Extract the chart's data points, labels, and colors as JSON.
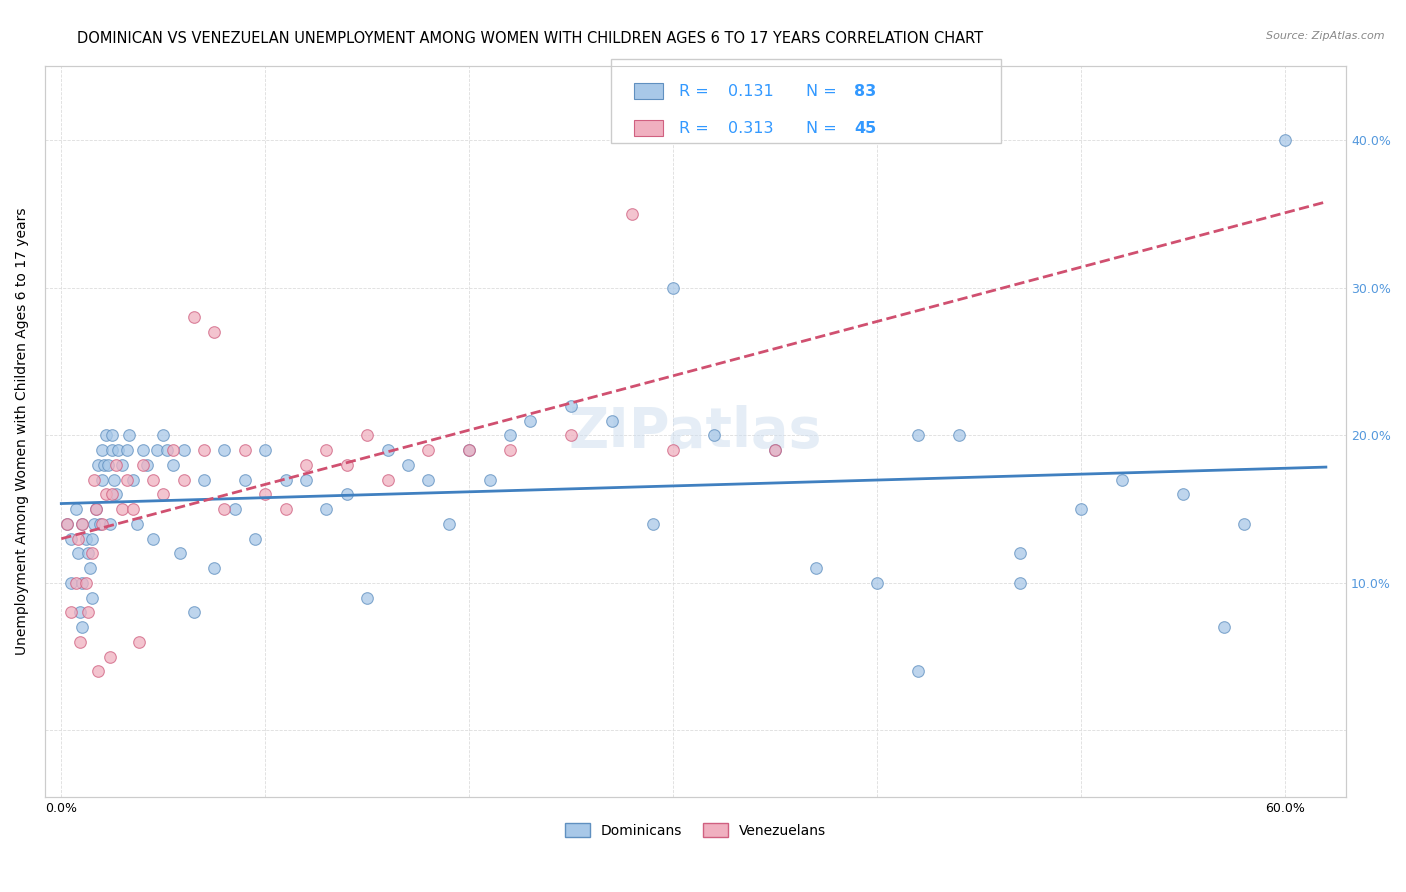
{
  "title": "DOMINICAN VS VENEZUELAN UNEMPLOYMENT AMONG WOMEN WITH CHILDREN AGES 6 TO 17 YEARS CORRELATION CHART",
  "source": "Source: ZipAtlas.com",
  "ylabel": "Unemployment Among Women with Children Ages 6 to 17 years",
  "xlim": [
    -0.008,
    0.63
  ],
  "ylim": [
    -0.045,
    0.45
  ],
  "dominican_color": "#A8C8E8",
  "venezuelan_color": "#F0B0C0",
  "dominican_edge": "#6090C0",
  "venezuelan_edge": "#D06080",
  "trendline_dominican_color": "#4080C0",
  "trendline_venezuelan_color": "#D05070",
  "R_dominican": 0.131,
  "N_dominican": 83,
  "R_venezuelan": 0.313,
  "N_venezuelan": 45,
  "legend_dominican": "Dominicans",
  "legend_venezuelan": "Venezuelans",
  "dominican_x": [
    0.003,
    0.005,
    0.005,
    0.007,
    0.008,
    0.009,
    0.01,
    0.01,
    0.01,
    0.012,
    0.013,
    0.014,
    0.015,
    0.015,
    0.016,
    0.017,
    0.018,
    0.019,
    0.02,
    0.02,
    0.021,
    0.022,
    0.023,
    0.024,
    0.025,
    0.025,
    0.026,
    0.027,
    0.028,
    0.03,
    0.032,
    0.033,
    0.035,
    0.037,
    0.04,
    0.042,
    0.045,
    0.047,
    0.05,
    0.052,
    0.055,
    0.058,
    0.06,
    0.065,
    0.07,
    0.075,
    0.08,
    0.085,
    0.09,
    0.095,
    0.1,
    0.11,
    0.12,
    0.13,
    0.14,
    0.15,
    0.16,
    0.17,
    0.18,
    0.19,
    0.2,
    0.21,
    0.22,
    0.23,
    0.25,
    0.27,
    0.29,
    0.3,
    0.32,
    0.35,
    0.37,
    0.4,
    0.42,
    0.44,
    0.47,
    0.5,
    0.52,
    0.55,
    0.57,
    0.58,
    0.42,
    0.47,
    0.6
  ],
  "dominican_y": [
    0.14,
    0.13,
    0.1,
    0.15,
    0.12,
    0.08,
    0.14,
    0.1,
    0.07,
    0.13,
    0.12,
    0.11,
    0.13,
    0.09,
    0.14,
    0.15,
    0.18,
    0.14,
    0.19,
    0.17,
    0.18,
    0.2,
    0.18,
    0.14,
    0.2,
    0.19,
    0.17,
    0.16,
    0.19,
    0.18,
    0.19,
    0.2,
    0.17,
    0.14,
    0.19,
    0.18,
    0.13,
    0.19,
    0.2,
    0.19,
    0.18,
    0.12,
    0.19,
    0.08,
    0.17,
    0.11,
    0.19,
    0.15,
    0.17,
    0.13,
    0.19,
    0.17,
    0.17,
    0.15,
    0.16,
    0.09,
    0.19,
    0.18,
    0.17,
    0.14,
    0.19,
    0.17,
    0.2,
    0.21,
    0.22,
    0.21,
    0.14,
    0.3,
    0.2,
    0.19,
    0.11,
    0.1,
    0.2,
    0.2,
    0.12,
    0.15,
    0.17,
    0.16,
    0.07,
    0.14,
    0.04,
    0.1,
    0.4
  ],
  "venezuelan_x": [
    0.003,
    0.005,
    0.007,
    0.008,
    0.009,
    0.01,
    0.012,
    0.013,
    0.015,
    0.016,
    0.017,
    0.018,
    0.02,
    0.022,
    0.024,
    0.025,
    0.027,
    0.03,
    0.032,
    0.035,
    0.038,
    0.04,
    0.045,
    0.05,
    0.055,
    0.06,
    0.065,
    0.07,
    0.075,
    0.08,
    0.09,
    0.1,
    0.11,
    0.12,
    0.13,
    0.14,
    0.15,
    0.16,
    0.18,
    0.2,
    0.22,
    0.25,
    0.28,
    0.3,
    0.35
  ],
  "venezuelan_y": [
    0.14,
    0.08,
    0.1,
    0.13,
    0.06,
    0.14,
    0.1,
    0.08,
    0.12,
    0.17,
    0.15,
    0.04,
    0.14,
    0.16,
    0.05,
    0.16,
    0.18,
    0.15,
    0.17,
    0.15,
    0.06,
    0.18,
    0.17,
    0.16,
    0.19,
    0.17,
    0.28,
    0.19,
    0.27,
    0.15,
    0.19,
    0.16,
    0.15,
    0.18,
    0.19,
    0.18,
    0.2,
    0.17,
    0.19,
    0.19,
    0.19,
    0.2,
    0.35,
    0.19,
    0.19
  ],
  "background_color": "#FFFFFF",
  "grid_color": "#DDDDDD",
  "title_fontsize": 10.5,
  "axis_label_fontsize": 10,
  "tick_fontsize": 9,
  "marker_size": 70,
  "marker_alpha": 0.75,
  "blue_text_color": "#3399FF",
  "right_axis_color": "#5599DD"
}
